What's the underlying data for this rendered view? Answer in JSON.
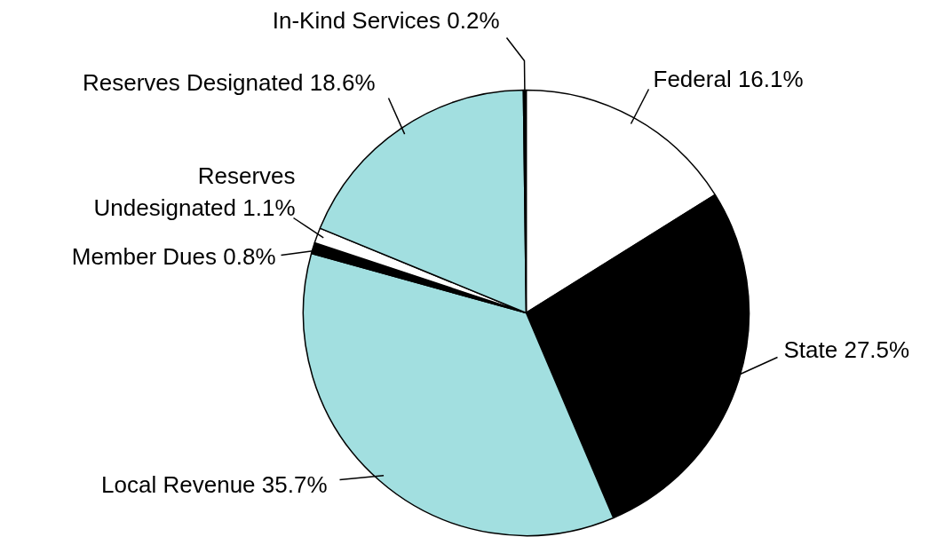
{
  "chart_data": {
    "type": "pie",
    "categories": [
      "Federal",
      "State",
      "Local Revenue",
      "Member Dues",
      "Reserves Undesignated",
      "Reserves Designated",
      "In-Kind Services"
    ],
    "values": [
      16.1,
      27.5,
      35.7,
      0.8,
      1.1,
      18.6,
      0.2
    ],
    "value_labels": [
      "16.1%",
      "27.5%",
      "35.7%",
      "0.8%",
      "1.1%",
      "18.6%",
      "0.2%"
    ],
    "colors": [
      "#ffffff",
      "#000000",
      "#a2dfe0",
      "#000000",
      "#ffffff",
      "#a2dfe0",
      "#000000"
    ]
  }
}
